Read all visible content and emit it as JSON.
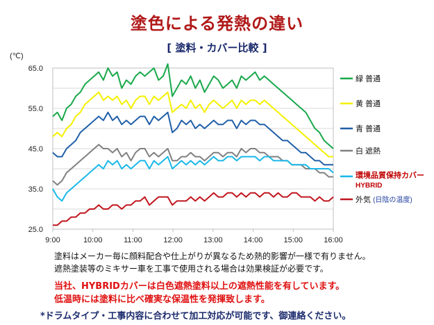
{
  "title": "塗色による発熱の違い",
  "subtitle": "[ 塗料・カバー比較 ]",
  "notes": [
    "塗料はメーカー毎に顔料配合や仕上がりが異なるため熱的影響が一様で有りません。",
    "遮熱塗装等のミキサー車を工事で使用される場合は効果検証が必要です。"
  ],
  "highlight_notes": [
    "当社、HYBRIDカバーは白色遮熱塗料以上の遮熱性能を有しています。",
    "低温時には塗料に比べ確実な保温性を発揮致します。"
  ],
  "footnote": "*ドラムタイプ・工事内容に合わせて加工対応が可能です、御連絡ください。",
  "chart_data": {
    "type": "line",
    "ylabel": "(℃)",
    "ylim": [
      25,
      65
    ],
    "yticks": [
      "65.0",
      "55.0",
      "45.0",
      "35.0",
      "25.0"
    ],
    "ytick_values": [
      65,
      55,
      45,
      35,
      25
    ],
    "xticks": [
      "9:00",
      "10:00",
      "11:00",
      "12:00",
      "13:00",
      "14:00",
      "15:00",
      "16:00"
    ],
    "x_start": "9:00",
    "x_end": "16:00",
    "grid": true,
    "legend_position": "right",
    "series": [
      {
        "name": "緑 普通",
        "color": "#18a84a",
        "values": [
          53,
          54,
          52,
          55,
          56,
          58,
          59,
          61,
          62,
          63,
          64,
          62,
          65,
          63,
          64,
          60,
          62,
          61,
          63,
          64,
          63,
          64,
          65,
          62,
          63,
          66,
          58,
          60,
          62,
          61,
          63,
          60,
          62,
          59,
          61,
          63,
          62,
          60,
          61,
          62,
          60,
          63,
          62,
          63,
          64,
          62,
          63,
          62,
          61,
          60,
          59,
          58,
          57,
          56,
          55,
          54,
          52,
          50,
          49,
          47,
          46,
          45
        ]
      },
      {
        "name": "黄 普通",
        "color": "#f4f000",
        "values": [
          48,
          49,
          48,
          50,
          51,
          53,
          54,
          56,
          57,
          58,
          59,
          57,
          58,
          57,
          58,
          56,
          57,
          55,
          57,
          58,
          58,
          56,
          58,
          57,
          58,
          59,
          54,
          55,
          56,
          55,
          57,
          55,
          56,
          54,
          56,
          57,
          56,
          55,
          56,
          57,
          55,
          57,
          56,
          57,
          57,
          56,
          57,
          56,
          55,
          54,
          53,
          52,
          51,
          50,
          49,
          48,
          47,
          46,
          45,
          44,
          43,
          43
        ]
      },
      {
        "name": "青 普通",
        "color": "#1f5fa8",
        "values": [
          44,
          43,
          43,
          45,
          46,
          47,
          49,
          50,
          51,
          52,
          53,
          52,
          54,
          52,
          53,
          51,
          52,
          51,
          52,
          53,
          53,
          51,
          53,
          52,
          53,
          54,
          49,
          50,
          52,
          51,
          52,
          50,
          51,
          50,
          51,
          52,
          51,
          51,
          52,
          52,
          50,
          52,
          51,
          52,
          52,
          51,
          51,
          50,
          49,
          48,
          47,
          47,
          46,
          45,
          44,
          44,
          43,
          42,
          42,
          41,
          41,
          41
        ]
      },
      {
        "name": "白 遮熱",
        "color": "#808080",
        "values": [
          37,
          36,
          37,
          39,
          40,
          41,
          42,
          43,
          44,
          45,
          46,
          45,
          45,
          44,
          45,
          43,
          44,
          42,
          44,
          45,
          45,
          43,
          44,
          43,
          44,
          45,
          42,
          42,
          43,
          43,
          44,
          43,
          43,
          42,
          43,
          44,
          44,
          43,
          44,
          44,
          43,
          45,
          44,
          45,
          45,
          44,
          44,
          43,
          43,
          43,
          42,
          42,
          41,
          41,
          41,
          40,
          40,
          40,
          39,
          39,
          38,
          38
        ]
      },
      {
        "name": "環境品質保持カバー HYBRID",
        "color": "#19b8e8",
        "values": [
          35,
          33,
          32,
          34,
          35,
          36,
          37,
          38,
          39,
          40,
          41,
          40,
          42,
          41,
          42,
          40,
          41,
          40,
          41,
          42,
          42,
          40,
          42,
          41,
          42,
          43,
          40,
          41,
          42,
          41,
          42,
          41,
          42,
          41,
          42,
          43,
          42,
          42,
          43,
          43,
          42,
          43,
          43,
          43,
          43,
          42,
          43,
          43,
          42,
          42,
          42,
          42,
          41,
          41,
          41,
          41,
          40,
          40,
          40,
          40,
          40,
          39
        ]
      },
      {
        "name": "外気 (日陰の温度)",
        "color": "#c0161e",
        "values": [
          26,
          26,
          27,
          27,
          28,
          28,
          29,
          29,
          30,
          30,
          31,
          30,
          30,
          31,
          31,
          30,
          31,
          31,
          32,
          32,
          33,
          31,
          32,
          33,
          33,
          33,
          31,
          32,
          32,
          32,
          33,
          32,
          33,
          32,
          33,
          34,
          33,
          33,
          34,
          34,
          33,
          34,
          33,
          34,
          34,
          33,
          34,
          34,
          33,
          34,
          33,
          33,
          34,
          34,
          33,
          33,
          33,
          32,
          33,
          32,
          32,
          33
        ]
      }
    ]
  }
}
